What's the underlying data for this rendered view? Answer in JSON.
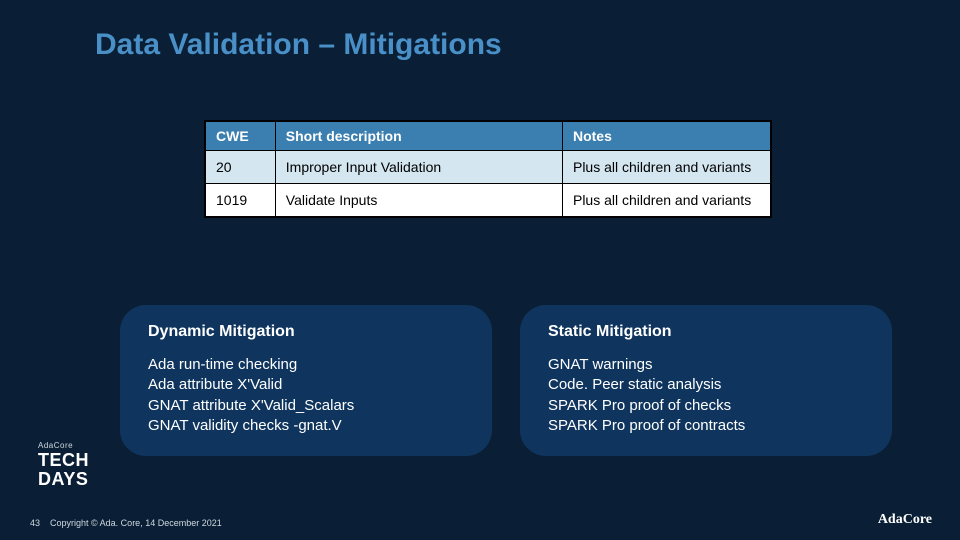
{
  "colors": {
    "background": "#0a1f35",
    "title": "#4a90c8",
    "table_header_bg": "#3b7fb0",
    "table_header_fg": "#ffffff",
    "table_row_alt_bg": "#d4e6f0",
    "table_row_bg": "#ffffff",
    "table_fg": "#000000",
    "box_bg": "#0f355e",
    "box_fg": "#ffffff",
    "footer_fg": "#cfd8e0"
  },
  "title": "Data Validation – Mitigations",
  "table": {
    "columns": [
      "CWE",
      "Short description",
      "Notes"
    ],
    "rows": [
      {
        "cwe": "20",
        "desc": "Improper Input Validation",
        "notes": "Plus all children and variants"
      },
      {
        "cwe": "1019",
        "desc": "Validate Inputs",
        "notes": "Plus all children and variants"
      }
    ]
  },
  "dynamic": {
    "title": "Dynamic Mitigation",
    "lines": [
      "Ada run-time checking",
      "Ada attribute X'Valid",
      "GNAT attribute X'Valid_Scalars",
      "GNAT validity checks -gnat.V"
    ]
  },
  "static": {
    "title": "Static Mitigation",
    "lines": [
      "GNAT warnings",
      "Code. Peer static analysis",
      "SPARK Pro proof of checks",
      "SPARK Pro proof of contracts"
    ]
  },
  "techdays": {
    "brand": "AdaCore",
    "line1": "TECH",
    "line2": "DAYS"
  },
  "footer": {
    "page": "43",
    "copyright": "Copyright © Ada. Core, 14 December 2021"
  },
  "logo": {
    "text": "AdaCore"
  }
}
